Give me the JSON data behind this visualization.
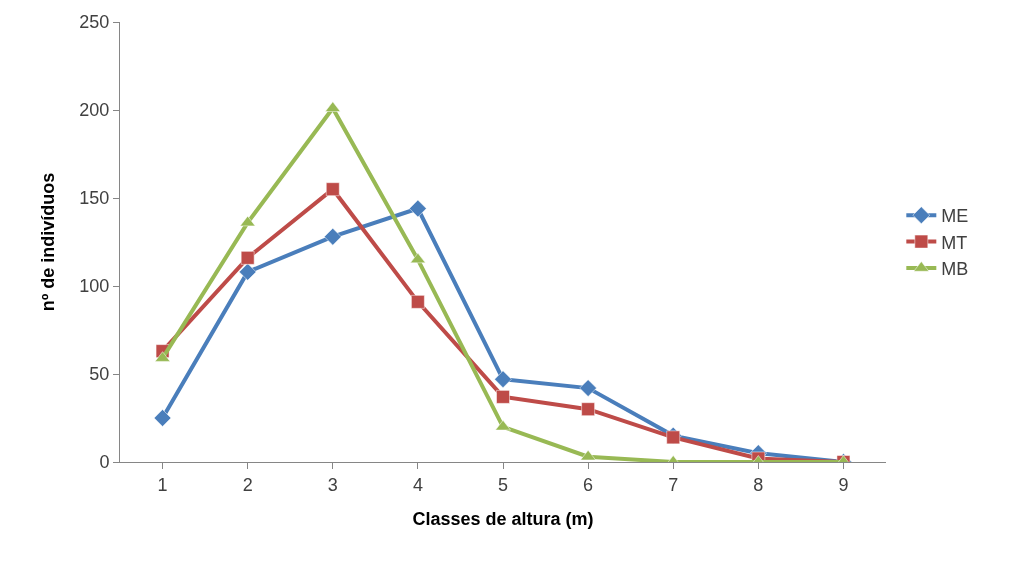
{
  "chart_data": {
    "type": "line",
    "xlabel": "Classes de altura (m)",
    "ylabel": "nº de indivíduos",
    "categories": [
      "1",
      "2",
      "3",
      "4",
      "5",
      "6",
      "7",
      "8",
      "9"
    ],
    "series": [
      {
        "name": "ME",
        "color": "#4a7ebb",
        "marker": "diamond",
        "values": [
          25,
          108,
          128,
          144,
          47,
          42,
          15,
          5,
          0
        ]
      },
      {
        "name": "MT",
        "color": "#be4b48",
        "marker": "square",
        "values": [
          63,
          116,
          155,
          91,
          37,
          30,
          14,
          2,
          0
        ]
      },
      {
        "name": "MB",
        "color": "#98b954",
        "marker": "triangle",
        "values": [
          59,
          136,
          201,
          115,
          20,
          3,
          0,
          0,
          0
        ]
      }
    ],
    "ylim": [
      0,
      250
    ],
    "yticks": [
      0,
      50,
      100,
      150,
      200,
      250
    ],
    "grid": false,
    "legend": "right"
  }
}
